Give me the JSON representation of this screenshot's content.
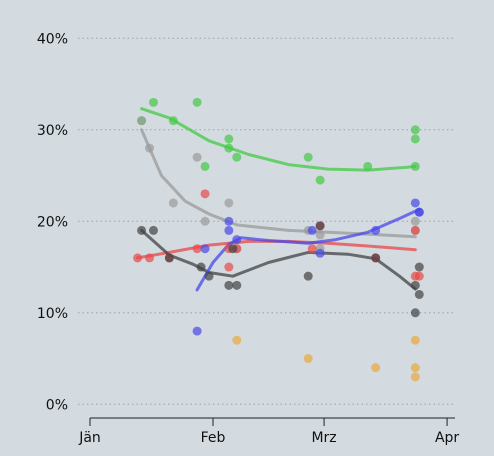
{
  "chart_data": {
    "type": "scatter",
    "title": "",
    "xlabel": "",
    "ylabel": "",
    "x_ticks": [
      {
        "day": 0,
        "label": "Jän"
      },
      {
        "day": 31,
        "label": "Feb"
      },
      {
        "day": 59,
        "label": "Mrz"
      },
      {
        "day": 90,
        "label": "Apr"
      }
    ],
    "y_ticks": [
      {
        "value": 0,
        "label": "0%"
      },
      {
        "value": 10,
        "label": "10%"
      },
      {
        "value": 20,
        "label": "20%"
      },
      {
        "value": 30,
        "label": "30%"
      },
      {
        "value": 40,
        "label": "40%"
      }
    ],
    "xlim": [
      0,
      92
    ],
    "ylim": [
      -1.5,
      42
    ],
    "grid": true,
    "series": [
      {
        "color": "#44c944",
        "points": [
          [
            13,
            31
          ],
          [
            16,
            33
          ],
          [
            21,
            31
          ],
          [
            27,
            33
          ],
          [
            29,
            26
          ],
          [
            35,
            28
          ],
          [
            35,
            29
          ],
          [
            37,
            27
          ],
          [
            55,
            27
          ],
          [
            58,
            24.5
          ],
          [
            70,
            26
          ],
          [
            82,
            30
          ],
          [
            82,
            29
          ],
          [
            82,
            26
          ]
        ],
        "trend": [
          [
            13,
            32.3
          ],
          [
            20,
            31.3
          ],
          [
            30,
            28.8
          ],
          [
            40,
            27.3
          ],
          [
            50,
            26.2
          ],
          [
            60,
            25.7
          ],
          [
            70,
            25.6
          ],
          [
            80,
            25.9
          ],
          [
            82,
            26
          ]
        ]
      },
      {
        "color": "#9a9a9a",
        "points": [
          [
            13,
            31
          ],
          [
            15,
            28
          ],
          [
            21,
            22
          ],
          [
            27,
            27
          ],
          [
            29,
            20
          ],
          [
            35,
            22
          ],
          [
            37,
            17
          ],
          [
            55,
            19
          ],
          [
            58,
            18.5
          ],
          [
            58,
            17
          ],
          [
            82,
            20
          ],
          [
            82,
            19
          ]
        ],
        "trend": [
          [
            13,
            30
          ],
          [
            18,
            25
          ],
          [
            24,
            22.2
          ],
          [
            30,
            20.8
          ],
          [
            37,
            19.6
          ],
          [
            50,
            19
          ],
          [
            60,
            18.8
          ],
          [
            70,
            18.6
          ],
          [
            82,
            18.3
          ]
        ]
      },
      {
        "color": "#e84848",
        "points": [
          [
            12,
            16
          ],
          [
            15,
            16
          ],
          [
            20,
            16
          ],
          [
            27,
            17
          ],
          [
            29,
            23
          ],
          [
            35,
            15
          ],
          [
            35,
            17
          ],
          [
            37,
            17
          ],
          [
            56,
            17
          ],
          [
            58,
            19.5
          ],
          [
            72,
            16
          ],
          [
            82,
            19
          ],
          [
            82,
            14
          ],
          [
            83,
            14
          ]
        ],
        "trend": [
          [
            12,
            16
          ],
          [
            20,
            16.6
          ],
          [
            30,
            17.4
          ],
          [
            40,
            17.8
          ],
          [
            50,
            17.8
          ],
          [
            60,
            17.6
          ],
          [
            70,
            17.3
          ],
          [
            82,
            16.9
          ]
        ]
      },
      {
        "color": "#424242",
        "points": [
          [
            13,
            19
          ],
          [
            16,
            19
          ],
          [
            20,
            16
          ],
          [
            28,
            15
          ],
          [
            30,
            14
          ],
          [
            35,
            13
          ],
          [
            36,
            17
          ],
          [
            37,
            13
          ],
          [
            55,
            14
          ],
          [
            58,
            19.5
          ],
          [
            72,
            16
          ],
          [
            82,
            13
          ],
          [
            82,
            10
          ],
          [
            83,
            12
          ],
          [
            83,
            15
          ]
        ],
        "trend": [
          [
            13,
            19
          ],
          [
            20,
            16.3
          ],
          [
            26,
            15.3
          ],
          [
            30,
            14.4
          ],
          [
            36,
            14
          ],
          [
            45,
            15.5
          ],
          [
            55,
            16.6
          ],
          [
            65,
            16.4
          ],
          [
            72,
            15.9
          ],
          [
            78,
            14
          ],
          [
            82,
            12.6
          ]
        ]
      },
      {
        "color": "#4848e8",
        "points": [
          [
            27,
            8
          ],
          [
            29,
            17
          ],
          [
            35,
            20
          ],
          [
            35,
            19
          ],
          [
            37,
            18
          ],
          [
            56,
            19
          ],
          [
            58,
            16.5
          ],
          [
            72,
            19
          ],
          [
            82,
            22
          ],
          [
            83,
            21
          ],
          [
            83,
            21
          ]
        ],
        "trend": [
          [
            27,
            12.5
          ],
          [
            31,
            15.5
          ],
          [
            35,
            17.5
          ],
          [
            38,
            18.2
          ],
          [
            45,
            17.9
          ],
          [
            55,
            17.6
          ],
          [
            62,
            18
          ],
          [
            70,
            18.8
          ],
          [
            78,
            20.3
          ],
          [
            83,
            21.3
          ]
        ]
      },
      {
        "color": "#eaa93c",
        "points": [
          [
            37,
            7
          ],
          [
            55,
            5
          ],
          [
            72,
            4
          ],
          [
            82,
            7
          ],
          [
            82,
            4
          ],
          [
            82,
            3
          ]
        ],
        "trend": []
      }
    ]
  }
}
